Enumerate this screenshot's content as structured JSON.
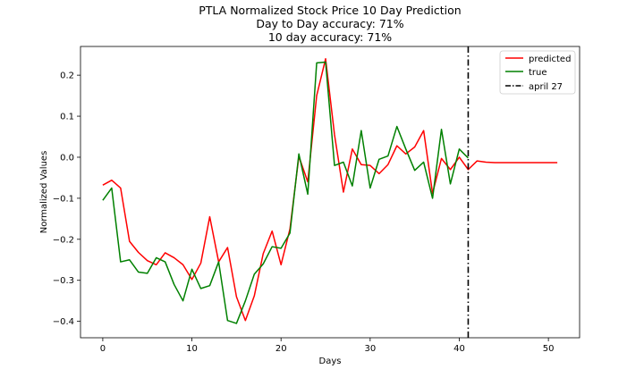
{
  "chart_data": {
    "type": "line",
    "title_lines": [
      "PTLA Normalized Stock Price 10 Day Prediction",
      "Day to Day accuracy: 71%",
      "10 day accuracy: 71%"
    ],
    "xlabel": "Days",
    "ylabel": "Normalized Values",
    "xlim": [
      -2.5,
      53.5
    ],
    "ylim": [
      -0.44,
      0.27
    ],
    "xticks": [
      0,
      10,
      20,
      30,
      40,
      50
    ],
    "yticks": [
      -0.4,
      -0.3,
      -0.2,
      -0.1,
      0.0,
      0.1,
      0.2
    ],
    "ytick_labels": [
      "−0.4",
      "−0.3",
      "−0.2",
      "−0.1",
      "0.0",
      "0.1",
      "0.2"
    ],
    "grid": false,
    "legend_position": "top-right",
    "series": [
      {
        "name": "predicted",
        "color": "#ff0000",
        "x": [
          0,
          1,
          2,
          3,
          4,
          5,
          6,
          7,
          8,
          9,
          10,
          11,
          12,
          13,
          14,
          15,
          16,
          17,
          18,
          19,
          20,
          21,
          22,
          23,
          24,
          25,
          26,
          27,
          28,
          29,
          30,
          31,
          32,
          33,
          34,
          35,
          36,
          37,
          38,
          39,
          40,
          41,
          42,
          43,
          44,
          45,
          46,
          47,
          48,
          49,
          50,
          51
        ],
        "y": [
          -0.068,
          -0.056,
          -0.075,
          -0.205,
          -0.232,
          -0.252,
          -0.262,
          -0.233,
          -0.245,
          -0.262,
          -0.298,
          -0.258,
          -0.145,
          -0.255,
          -0.22,
          -0.34,
          -0.398,
          -0.338,
          -0.235,
          -0.18,
          -0.262,
          -0.175,
          0.002,
          -0.06,
          0.15,
          0.24,
          0.055,
          -0.085,
          0.02,
          -0.018,
          -0.02,
          -0.04,
          -0.018,
          0.028,
          0.008,
          0.025,
          0.065,
          -0.088,
          -0.003,
          -0.03,
          0.0,
          -0.03,
          -0.009,
          -0.012,
          -0.013,
          -0.013,
          -0.013,
          -0.013,
          -0.013,
          -0.013,
          -0.013,
          -0.013
        ]
      },
      {
        "name": "true",
        "color": "#008000",
        "x": [
          0,
          1,
          2,
          3,
          4,
          5,
          6,
          7,
          8,
          9,
          10,
          11,
          12,
          13,
          14,
          15,
          16,
          17,
          18,
          19,
          20,
          21,
          22,
          23,
          24,
          25,
          26,
          27,
          28,
          29,
          30,
          31,
          32,
          33,
          34,
          35,
          36,
          37,
          38,
          39,
          40,
          41
        ],
        "y": [
          -0.105,
          -0.075,
          -0.255,
          -0.25,
          -0.28,
          -0.283,
          -0.245,
          -0.255,
          -0.31,
          -0.35,
          -0.273,
          -0.32,
          -0.313,
          -0.255,
          -0.398,
          -0.405,
          -0.35,
          -0.285,
          -0.26,
          -0.218,
          -0.222,
          -0.185,
          0.008,
          -0.09,
          0.23,
          0.232,
          -0.02,
          -0.012,
          -0.07,
          0.065,
          -0.075,
          -0.005,
          0.003,
          0.075,
          0.02,
          -0.032,
          -0.012,
          -0.1,
          0.068,
          -0.065,
          0.02,
          -0.002
        ]
      },
      {
        "name": "april 27",
        "color": "#000000",
        "type": "vline",
        "x": 41
      }
    ]
  }
}
